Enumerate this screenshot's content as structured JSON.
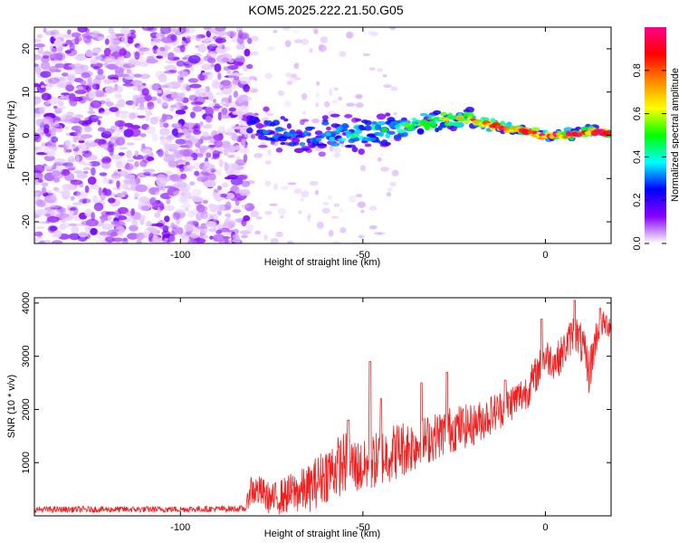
{
  "title": "KOM5.2025.222.21.50.G05",
  "chart_data": [
    {
      "type": "heatmap",
      "xlabel": "Height of straight line (km)",
      "ylabel": "Frequency (Hz)",
      "xlim": [
        -140,
        18
      ],
      "ylim": [
        -25,
        25
      ],
      "xticks": [
        -100,
        -50,
        0
      ],
      "yticks": [
        -20,
        -10,
        0,
        10,
        20
      ],
      "colorbar": {
        "label": "Normalized spectral amplitude",
        "range": [
          0,
          1
        ],
        "ticks": [
          "0.0",
          "0.2",
          "0.4",
          "0.6",
          "0.8"
        ],
        "colors": [
          "#ffffff",
          "#8800ff",
          "#0000ff",
          "#00ffff",
          "#00ff00",
          "#ffff00",
          "#ff8800",
          "#ff0000",
          "#ff0088"
        ]
      },
      "noise_region_x": [
        -140,
        -81
      ],
      "ridge": {
        "x": [
          -81,
          -75,
          -70,
          -65,
          -60,
          -55,
          -50,
          -45,
          -40,
          -35,
          -30,
          -25,
          -20,
          -15,
          -10,
          -5,
          0,
          5,
          10,
          15,
          18
        ],
        "frequency": [
          2,
          1.5,
          0,
          -1,
          0.5,
          0,
          0,
          1,
          2,
          2.5,
          3.5,
          4,
          3.5,
          2.5,
          1.5,
          1,
          0,
          0,
          0.5,
          1,
          0
        ],
        "amplitude": [
          0.25,
          0.3,
          0.32,
          0.3,
          0.35,
          0.4,
          0.42,
          0.45,
          0.5,
          0.55,
          0.6,
          0.65,
          0.75,
          0.8,
          0.85,
          0.9,
          0.92,
          0.9,
          0.88,
          0.9,
          0.85
        ]
      }
    },
    {
      "type": "line",
      "xlabel": "Height of straight line (km)",
      "ylabel": "SNR (10 * v/v)",
      "xlim": [
        -140,
        18
      ],
      "ylim": [
        0,
        4100
      ],
      "xticks": [
        -100,
        -50,
        0
      ],
      "yticks": [
        1000,
        2000,
        3000,
        4000
      ],
      "color": "#ee2020",
      "x": [
        -140,
        -120,
        -100,
        -90,
        -82,
        -81,
        -78,
        -75,
        -70,
        -65,
        -60,
        -55,
        -50,
        -45,
        -40,
        -35,
        -30,
        -25,
        -20,
        -15,
        -10,
        -5,
        -3,
        0,
        3,
        5,
        8,
        10,
        12,
        14,
        15,
        18
      ],
      "y": [
        120,
        120,
        125,
        130,
        135,
        500,
        450,
        300,
        420,
        500,
        800,
        1000,
        900,
        1100,
        1250,
        1350,
        1500,
        1650,
        1700,
        1900,
        2100,
        2350,
        2600,
        3000,
        2900,
        3100,
        3500,
        3200,
        2700,
        3400,
        3600,
        3600
      ],
      "spread": [
        60,
        60,
        60,
        60,
        60,
        320,
        300,
        300,
        380,
        450,
        550,
        600,
        500,
        550,
        550,
        500,
        450,
        450,
        400,
        380,
        360,
        350,
        350,
        350,
        350,
        350,
        350,
        400,
        450,
        350,
        250,
        250
      ],
      "peaks": [
        {
          "x": -54,
          "y": 1800
        },
        {
          "x": -48,
          "y": 2900
        },
        {
          "x": -45,
          "y": 2200
        },
        {
          "x": -34,
          "y": 2500
        },
        {
          "x": -27,
          "y": 2700
        },
        {
          "x": -11,
          "y": 2550
        },
        {
          "x": -1,
          "y": 3700
        },
        {
          "x": 8,
          "y": 4050
        },
        {
          "x": 15,
          "y": 3900
        }
      ]
    }
  ]
}
